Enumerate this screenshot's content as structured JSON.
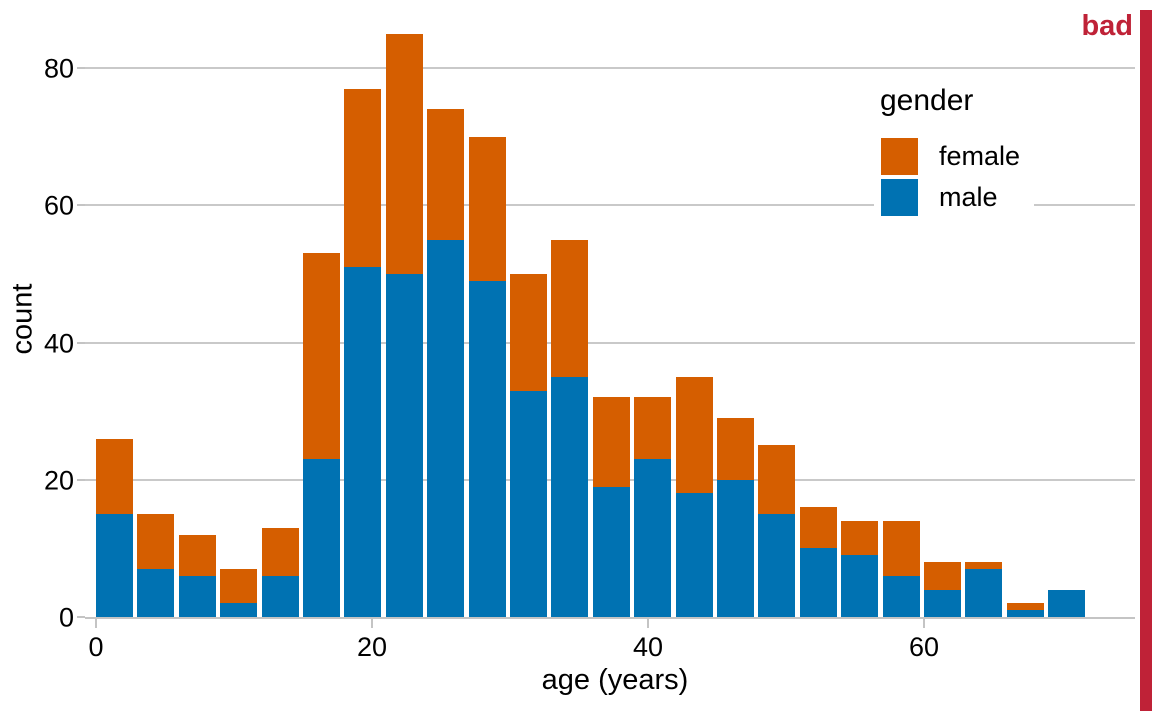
{
  "figure": {
    "annotation": {
      "label": "bad",
      "color": "#bf2237"
    },
    "stripe_color": "#bf2237"
  },
  "legend": {
    "title": "gender",
    "items": [
      {
        "label": "female",
        "color": "#D55E00"
      },
      {
        "label": "male",
        "color": "#0072B2"
      }
    ]
  },
  "chart_data": {
    "type": "bar",
    "stacked": true,
    "title": "",
    "xlabel": "age (years)",
    "ylabel": "count",
    "bin_width_years": 3,
    "bin_starts": [
      0,
      3,
      6,
      9,
      12,
      15,
      18,
      21,
      24,
      27,
      30,
      33,
      36,
      39,
      42,
      45,
      48,
      51,
      54,
      57,
      60,
      63,
      66,
      69
    ],
    "series": [
      {
        "name": "male",
        "color": "#0072B2",
        "values": [
          15,
          7,
          6,
          2,
          6,
          23,
          51,
          50,
          55,
          49,
          33,
          35,
          19,
          23,
          18,
          20,
          15,
          10,
          9,
          6,
          4,
          7,
          1,
          4
        ]
      },
      {
        "name": "female",
        "color": "#D55E00",
        "values": [
          11,
          8,
          6,
          5,
          7,
          30,
          26,
          35,
          19,
          21,
          17,
          20,
          13,
          9,
          17,
          9,
          10,
          6,
          5,
          8,
          4,
          1,
          1,
          0
        ]
      }
    ],
    "stack_order_bottom_to_top": [
      "male",
      "female"
    ],
    "totals": [
      26,
      15,
      12,
      7,
      13,
      53,
      77,
      85,
      74,
      70,
      50,
      55,
      32,
      32,
      35,
      29,
      25,
      16,
      14,
      14,
      8,
      8,
      2,
      4
    ],
    "x_ticks": [
      0,
      20,
      40,
      60
    ],
    "y_ticks": [
      0,
      20,
      40,
      60,
      80
    ],
    "xlim": [
      -0.8,
      76
    ],
    "ylim": [
      0,
      88
    ],
    "grid": "horizontal",
    "legend_position": "upper-right-inside"
  }
}
